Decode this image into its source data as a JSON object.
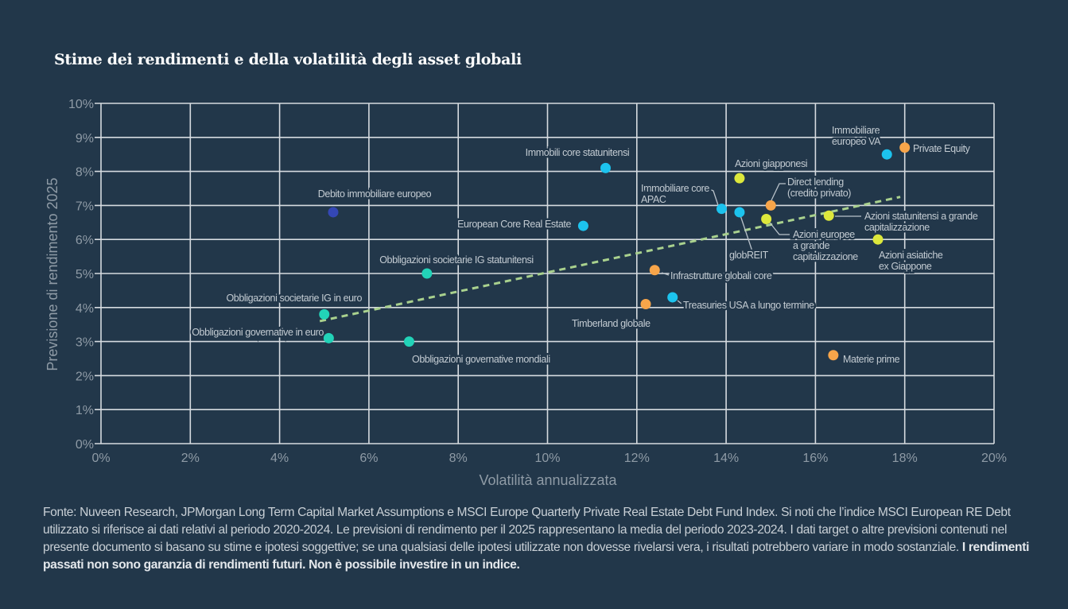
{
  "chart_data": {
    "type": "scatter",
    "title": "Stime dei rendimenti e della volatilità degli asset globali",
    "xlabel": "Volatilità annualizzata",
    "ylabel": "Previsione di rendimento 2025",
    "xlim": [
      0,
      20
    ],
    "ylim": [
      0,
      10
    ],
    "x_ticks": [
      "0%",
      "2%",
      "4%",
      "6%",
      "8%",
      "10%",
      "12%",
      "14%",
      "16%",
      "18%",
      "20%"
    ],
    "y_ticks": [
      "0%",
      "1%",
      "2%",
      "3%",
      "4%",
      "5%",
      "6%",
      "7%",
      "8%",
      "9%",
      "10%"
    ],
    "grid": true,
    "colors": {
      "background": "#22374a",
      "grid": "#d6dbe0",
      "cyan": "#1cc3ee",
      "teal": "#22d3b8",
      "yellow": "#dde83c",
      "orange": "#f7a54a",
      "navy": "#3447b5",
      "trend": "#a9d18e"
    },
    "points": [
      {
        "label": [
          "Debito immobiliare europeo"
        ],
        "x": 5.2,
        "y": 6.8,
        "color": "navy"
      },
      {
        "label": [
          "Immobili core statunitensi"
        ],
        "x": 11.3,
        "y": 8.1,
        "color": "cyan"
      },
      {
        "label": [
          "European Core Real Estate"
        ],
        "x": 10.8,
        "y": 6.4,
        "color": "cyan"
      },
      {
        "label": [
          "Obbligazioni societarie IG statunitensi"
        ],
        "x": 7.3,
        "y": 5.0,
        "color": "teal"
      },
      {
        "label": [
          "Obbligazioni societarie IG in euro"
        ],
        "x": 5.0,
        "y": 3.8,
        "color": "teal"
      },
      {
        "label": [
          "Obbligazioni governative in euro"
        ],
        "x": 5.1,
        "y": 3.1,
        "color": "teal"
      },
      {
        "label": [
          "Obbligazioni governative mondiali"
        ],
        "x": 6.9,
        "y": 3.0,
        "color": "teal"
      },
      {
        "label": [
          "Immobiliare core",
          "APAC"
        ],
        "x": 13.9,
        "y": 6.9,
        "color": "cyan"
      },
      {
        "label": [
          "globREIT"
        ],
        "x": 14.3,
        "y": 6.8,
        "color": "cyan"
      },
      {
        "label": [
          "Azioni giapponesi"
        ],
        "x": 14.3,
        "y": 7.8,
        "color": "yellow"
      },
      {
        "label": [
          "Direct lending",
          "(credito privato)"
        ],
        "x": 15.0,
        "y": 7.0,
        "color": "orange"
      },
      {
        "label": [
          "Azioni europee",
          "a grande",
          "capitalizzazione"
        ],
        "x": 14.9,
        "y": 6.6,
        "color": "yellow"
      },
      {
        "label": [
          "Azioni statunitensi a grande",
          "capitalizzazione"
        ],
        "x": 16.3,
        "y": 6.7,
        "color": "yellow"
      },
      {
        "label": [
          "Azioni asiatiche",
          "ex Giappone"
        ],
        "x": 17.4,
        "y": 6.0,
        "color": "yellow"
      },
      {
        "label": [
          "Immobiliare",
          "europeo VA"
        ],
        "x": 17.6,
        "y": 8.5,
        "color": "cyan"
      },
      {
        "label": [
          "Private Equity"
        ],
        "x": 18.0,
        "y": 8.7,
        "color": "orange"
      },
      {
        "label": [
          "Infrastrutture globali core"
        ],
        "x": 12.4,
        "y": 5.1,
        "color": "orange"
      },
      {
        "label": [
          "Timberland globale"
        ],
        "x": 12.2,
        "y": 4.1,
        "color": "orange"
      },
      {
        "label": [
          "Treasuries USA a lungo termine"
        ],
        "x": 12.8,
        "y": 4.3,
        "color": "cyan"
      },
      {
        "label": [
          "Materie prime"
        ],
        "x": 16.4,
        "y": 2.6,
        "color": "orange"
      }
    ],
    "trendline": {
      "x": [
        4.9,
        17.9
      ],
      "y": [
        3.6,
        7.25
      ],
      "style": "dashed"
    }
  },
  "footer": {
    "text": "Fonte: Nuveen Research, JPMorgan Long Term Capital Market Assumptions e MSCI Europe Quarterly Private Real Estate Debt Fund Index. Si noti che l’indice MSCI European RE Debt utilizzato si riferisce ai dati relativi al periodo 2020-2024. Le previsioni di rendimento per il 2025 rappresentano la media del periodo 2023-2024. I dati target o altre previsioni contenuti nel presente documento si basano su stime e ipotesi soggettive; se una qualsiasi delle ipotesi utilizzate non dovesse rivelarsi vera, i risultati potrebbero variare in modo sostanziale.",
    "bold": "I rendimenti passati non sono garanzia di rendimenti futuri. Non è possibile investire in un indice."
  }
}
